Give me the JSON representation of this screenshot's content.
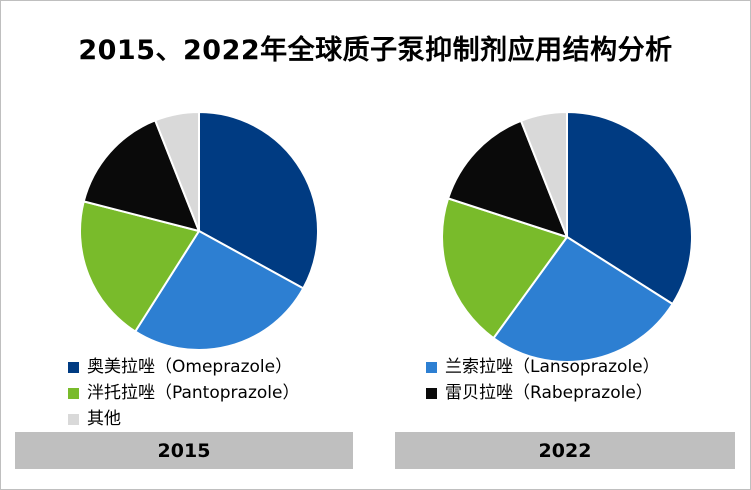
{
  "title": "2015、2022年全球质子泵抑制剂应用结构分析",
  "colors": {
    "omeprazole": "#003b82",
    "lansoprazole": "#2d7fd2",
    "pantoprazole": "#79bb2b",
    "rabeprazole": "#0a0a0a",
    "others": "#d9d9d9"
  },
  "legend_left": [
    {
      "label": "奥美拉唑（Omeprazole）",
      "color_key": "omeprazole"
    },
    {
      "label": "泮托拉唑（Pantoprazole）",
      "color_key": "pantoprazole"
    },
    {
      "label": "其他",
      "color_key": "others"
    }
  ],
  "legend_right": [
    {
      "label": "兰索拉唑（Lansoprazole）",
      "color_key": "lansoprazole"
    },
    {
      "label": "雷贝拉唑（Rabeprazole）",
      "color_key": "rabeprazole"
    }
  ],
  "chart_data": [
    {
      "type": "pie",
      "label": "2015",
      "slices": [
        {
          "name": "奥美拉唑（Omeprazole）",
          "value": 33,
          "color_key": "omeprazole"
        },
        {
          "name": "兰索拉唑（Lansoprazole）",
          "value": 26,
          "color_key": "lansoprazole"
        },
        {
          "name": "泮托拉唑（Pantoprazole）",
          "value": 20,
          "color_key": "pantoprazole"
        },
        {
          "name": "雷贝拉唑（Rabeprazole）",
          "value": 15,
          "color_key": "rabeprazole"
        },
        {
          "name": "其他",
          "value": 6,
          "color_key": "others"
        }
      ]
    },
    {
      "type": "pie",
      "label": "2022",
      "slices": [
        {
          "name": "奥美拉唑（Omeprazole）",
          "value": 34,
          "color_key": "omeprazole"
        },
        {
          "name": "兰索拉唑（Lansoprazole）",
          "value": 26,
          "color_key": "lansoprazole"
        },
        {
          "name": "泮托拉唑（Pantoprazole）",
          "value": 20,
          "color_key": "pantoprazole"
        },
        {
          "name": "雷贝拉唑（Rabeprazole）",
          "value": 14,
          "color_key": "rabeprazole"
        },
        {
          "name": "其他",
          "value": 6,
          "color_key": "others"
        }
      ]
    }
  ]
}
